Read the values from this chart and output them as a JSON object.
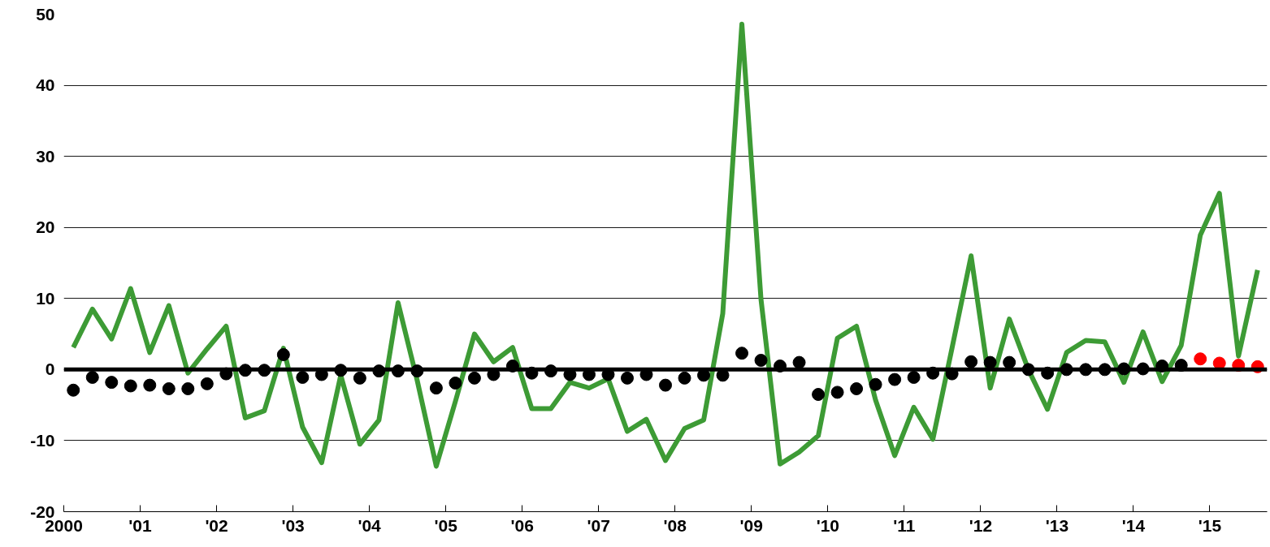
{
  "chart_data": {
    "type": "line",
    "xlim": [
      2000,
      2015.75
    ],
    "xticks": [
      {
        "value": 2000,
        "label": "2000"
      },
      {
        "value": 2001,
        "label": "'01"
      },
      {
        "value": 2002,
        "label": "'02"
      },
      {
        "value": 2003,
        "label": "'03"
      },
      {
        "value": 2004,
        "label": "'04"
      },
      {
        "value": 2005,
        "label": "'05"
      },
      {
        "value": 2006,
        "label": "'06"
      },
      {
        "value": 2007,
        "label": "'07"
      },
      {
        "value": 2008,
        "label": "'08"
      },
      {
        "value": 2009,
        "label": "'09"
      },
      {
        "value": 2010,
        "label": "'10"
      },
      {
        "value": 2011,
        "label": "'11"
      },
      {
        "value": 2012,
        "label": "'12"
      },
      {
        "value": 2013,
        "label": "'13"
      },
      {
        "value": 2014,
        "label": "'14"
      },
      {
        "value": 2015,
        "label": "'15"
      }
    ],
    "ylim": [
      -20,
      50
    ],
    "yticks": [
      -20,
      -10,
      0,
      10,
      20,
      30,
      40,
      50
    ],
    "grid": "y",
    "ref_lines": [
      {
        "axis": "y",
        "value": 0,
        "color": "#000000"
      }
    ],
    "series": [
      {
        "color": "#3d9b35",
        "x": [
          2000.125,
          2000.375,
          2000.625,
          2000.875,
          2001.125,
          2001.375,
          2001.625,
          2001.875,
          2002.125,
          2002.375,
          2002.625,
          2002.875,
          2003.125,
          2003.375,
          2003.625,
          2003.875,
          2004.125,
          2004.375,
          2004.625,
          2004.875,
          2005.125,
          2005.375,
          2005.625,
          2005.875,
          2006.125,
          2006.375,
          2006.625,
          2006.875,
          2007.125,
          2007.375,
          2007.625,
          2007.875,
          2008.125,
          2008.375,
          2008.625,
          2008.875,
          2009.125,
          2009.375,
          2009.625,
          2009.875,
          2010.125,
          2010.375,
          2010.625,
          2010.875,
          2011.125,
          2011.375,
          2011.625,
          2011.875,
          2012.125,
          2012.375,
          2012.625,
          2012.875,
          2013.125,
          2013.375,
          2013.625,
          2013.875,
          2014.125,
          2014.375,
          2014.625,
          2014.875,
          2015.125,
          2015.375,
          2015.625
        ],
        "values": [
          3.1,
          8.5,
          4.3,
          11.4,
          2.4,
          9.0,
          -0.5,
          2.9,
          6.1,
          -6.8,
          -5.8,
          3.0,
          -8.1,
          -13.1,
          -0.8,
          -10.5,
          -7.1,
          9.4,
          -1.5,
          -13.6,
          -4.5,
          5.0,
          1.1,
          3.1,
          -5.5,
          -5.5,
          -1.8,
          -2.6,
          -1.3,
          -8.7,
          -7.0,
          -12.8,
          -8.3,
          -7.1,
          7.9,
          48.6,
          9.9,
          -13.3,
          -11.6,
          -9.3,
          4.4,
          6.1,
          -4.3,
          -12.1,
          -5.3,
          -9.8,
          3.0,
          16.0,
          -2.6,
          7.1,
          0.0,
          -5.6,
          2.4,
          4.1,
          3.9,
          -1.8,
          5.3,
          -1.7,
          3.4,
          18.9,
          24.8,
          1.9,
          14.0
        ]
      },
      {
        "type": "scatter",
        "marker": "circle",
        "color": "#000000",
        "x": [
          2000.125,
          2000.375,
          2000.625,
          2000.875,
          2001.125,
          2001.375,
          2001.625,
          2001.875,
          2002.125,
          2002.375,
          2002.625,
          2002.875,
          2003.125,
          2003.375,
          2003.625,
          2003.875,
          2004.125,
          2004.375,
          2004.625,
          2004.875,
          2005.125,
          2005.375,
          2005.625,
          2005.875,
          2006.125,
          2006.375,
          2006.625,
          2006.875,
          2007.125,
          2007.375,
          2007.625,
          2007.875,
          2008.125,
          2008.375,
          2008.625,
          2008.875,
          2009.125,
          2009.375,
          2009.625,
          2009.875,
          2010.125,
          2010.375,
          2010.625,
          2010.875,
          2011.125,
          2011.375,
          2011.625,
          2011.875,
          2012.125,
          2012.375,
          2012.625,
          2012.875,
          2013.125,
          2013.375,
          2013.625,
          2013.875,
          2014.125,
          2014.375,
          2014.625
        ],
        "values": [
          -2.9,
          -1.1,
          -1.8,
          -2.3,
          -2.2,
          -2.7,
          -2.7,
          -2.0,
          -0.6,
          -0.1,
          -0.1,
          2.1,
          -1.1,
          -0.7,
          -0.1,
          -1.2,
          -0.2,
          -0.2,
          -0.2,
          -2.6,
          -1.9,
          -1.2,
          -0.7,
          0.5,
          -0.5,
          -0.2,
          -0.7,
          -0.7,
          -0.7,
          -1.2,
          -0.7,
          -2.2,
          -1.2,
          -0.8,
          -0.8,
          2.3,
          1.3,
          0.5,
          1.0,
          -3.5,
          -3.2,
          -2.7,
          -2.1,
          -1.4,
          -1.1,
          -0.5,
          -0.6,
          1.1,
          1.0,
          1.0,
          0.0,
          -0.5,
          0.0,
          0.0,
          0.0,
          0.1,
          0.1,
          0.5,
          0.6
        ]
      },
      {
        "type": "scatter",
        "marker": "circle",
        "color": "#ff0000",
        "x": [
          2014.875,
          2015.125,
          2015.375,
          2015.625
        ],
        "values": [
          1.5,
          0.9,
          0.6,
          0.4
        ]
      }
    ]
  }
}
